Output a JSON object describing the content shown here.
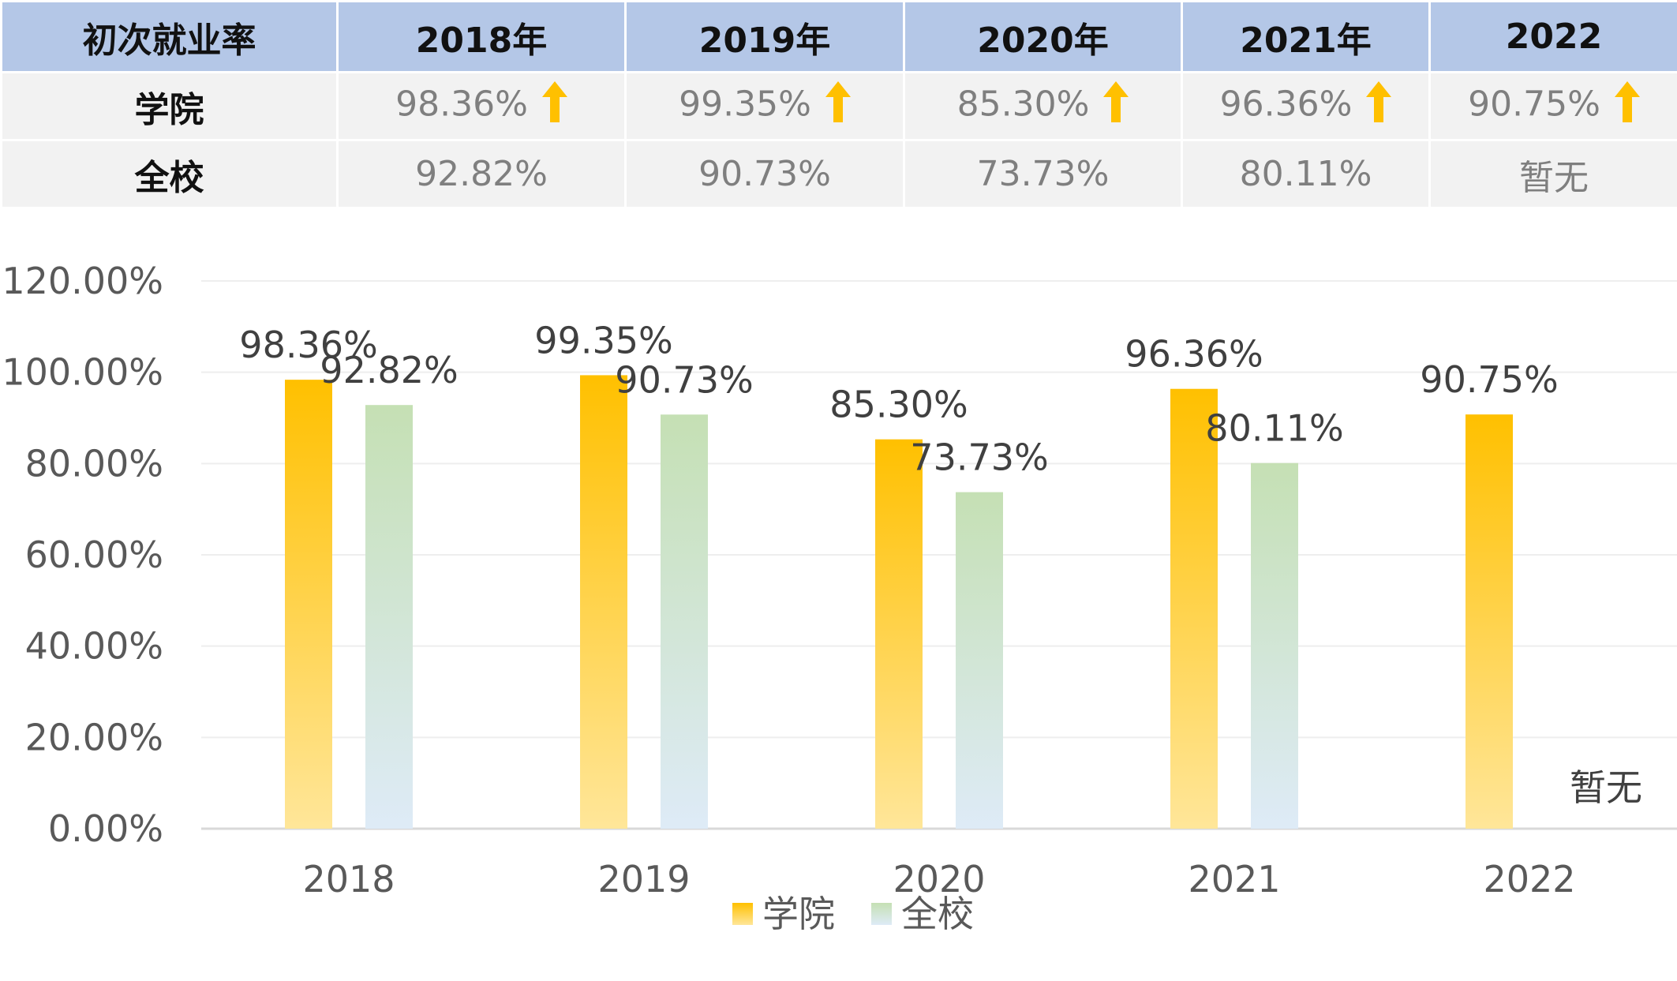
{
  "table": {
    "header": [
      "初次就业率",
      "2018年",
      "2019年",
      "2020年",
      "2021年",
      "2022"
    ],
    "rows": [
      {
        "label": "学院",
        "values": [
          "98.36%",
          "99.35%",
          "85.30%",
          "96.36%",
          "90.75%"
        ],
        "arrow": true
      },
      {
        "label": "全校",
        "values": [
          "92.82%",
          "90.73%",
          "73.73%",
          "80.11%",
          "暂无"
        ],
        "arrow": false
      }
    ],
    "arrow_icon": "up-arrow-icon",
    "arrow_color": "#ffc000"
  },
  "chart_data": {
    "type": "bar",
    "categories": [
      "2018",
      "2019",
      "2020",
      "2021",
      "2022"
    ],
    "series": [
      {
        "name": "学院",
        "values": [
          98.36,
          99.35,
          85.3,
          96.36,
          90.75
        ],
        "labels": [
          "98.36%",
          "99.35%",
          "85.30%",
          "96.36%",
          "90.75%"
        ],
        "color_top": "#ffc000",
        "color_bottom": "#ffe699"
      },
      {
        "name": "全校",
        "values": [
          92.82,
          90.73,
          73.73,
          80.11,
          null
        ],
        "labels": [
          "92.82%",
          "90.73%",
          "73.73%",
          "80.11%",
          "暂无"
        ],
        "color_top": "#c5e0b4",
        "color_bottom": "#deebf7"
      }
    ],
    "ylim": [
      0,
      120
    ],
    "yticks": [
      "0.00%",
      "20.00%",
      "40.00%",
      "60.00%",
      "80.00%",
      "100.00%",
      "120.00%"
    ],
    "grid": true,
    "legend_position": "bottom-center",
    "title": "",
    "xlabel": "",
    "ylabel": ""
  }
}
